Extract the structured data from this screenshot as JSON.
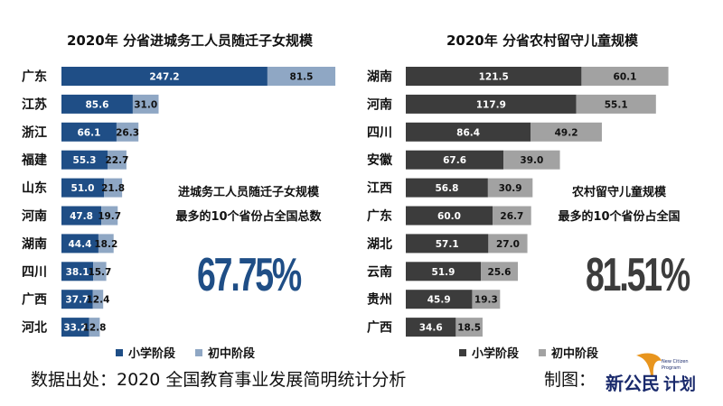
{
  "chart_data": [
    {
      "type": "bar",
      "orientation": "horizontal",
      "stacked": true,
      "title": "2020年 分省进城务工人员随迁子女规模",
      "categories": [
        "广东",
        "江苏",
        "浙江",
        "福建",
        "山东",
        "河南",
        "湖南",
        "四川",
        "广西",
        "河北"
      ],
      "series": [
        {
          "name": "小学阶段",
          "color": "#1f4e86",
          "values": [
            247.2,
            85.6,
            66.1,
            55.3,
            51.0,
            47.8,
            44.4,
            38.1,
            37.7,
            33.2
          ],
          "labels": [
            "247.2",
            "85.6",
            "66.1",
            "55.3",
            "51.0",
            "47.8",
            "44.4",
            "38.1",
            "37.7",
            "33.2"
          ]
        },
        {
          "name": "初中阶段",
          "color": "#8fa7c4",
          "values": [
            81.5,
            31.0,
            26.3,
            22.7,
            21.8,
            19.7,
            18.2,
            15.7,
            12.4,
            12.8
          ],
          "labels": [
            "81.5",
            "31.0",
            "26.3",
            "22.7",
            "21.8",
            "19.7",
            "18.2",
            "15.7",
            "12.4",
            "12.8"
          ]
        }
      ],
      "annotation": {
        "line1": "进城务工人员随迁子女规模",
        "line2": "最多的10个省份占全国总数",
        "value": "67.75%",
        "color": "#1f4e86"
      },
      "legend": "bottom"
    },
    {
      "type": "bar",
      "orientation": "horizontal",
      "stacked": true,
      "title": "2020年 分省农村留守儿童规模",
      "categories": [
        "湖南",
        "河南",
        "四川",
        "安徽",
        "江西",
        "广东",
        "湖北",
        "云南",
        "贵州",
        "广西"
      ],
      "series": [
        {
          "name": "小学阶段",
          "color": "#3c3c3c",
          "values": [
            121.5,
            117.9,
            86.4,
            67.6,
            56.8,
            60.0,
            57.1,
            51.9,
            45.9,
            34.6
          ],
          "labels": [
            "121.5",
            "117.9",
            "86.4",
            "67.6",
            "56.8",
            "60.0",
            "57.1",
            "51.9",
            "45.9",
            "34.6"
          ]
        },
        {
          "name": "初中阶段",
          "color": "#a2a2a2",
          "values": [
            60.1,
            55.1,
            49.2,
            39.0,
            30.9,
            26.7,
            27.0,
            25.6,
            19.3,
            18.5
          ],
          "labels": [
            "60.1",
            "55.1",
            "49.2",
            "39.0",
            "30.9",
            "26.7",
            "27.0",
            "25.6",
            "19.3",
            "18.5"
          ]
        }
      ],
      "annotation": {
        "line1": "农村留守儿童规模",
        "line2": "最多的10个省份占全国",
        "value": "81.51%",
        "color": "#3c3c3c"
      },
      "legend": "bottom"
    }
  ],
  "footer": {
    "source": "数据出处：2020 全国教育事业发展简明统计分析",
    "credit": "制图：",
    "logo_text": "新公民计划",
    "logo_subtext": "New Citizen Program"
  }
}
